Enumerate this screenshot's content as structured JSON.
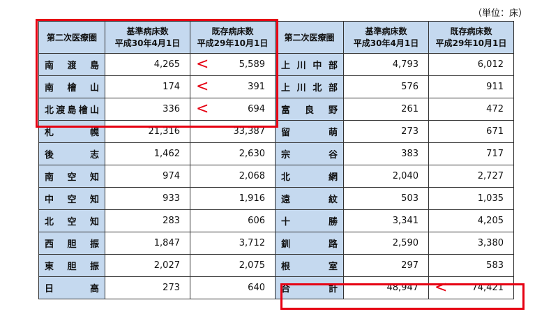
{
  "unit_label": "（単位：床）",
  "header": {
    "area": "第二次医療圏",
    "standard_line1": "基準病床数",
    "standard_line2": "平成30年4月1日",
    "existing_line1": "既存病床数",
    "existing_line2": "平成29年10月1日"
  },
  "mark": "<",
  "rows": [
    {
      "left": {
        "name": "南渡島",
        "standard": "4,265",
        "existing": "5,589",
        "mark": true
      },
      "right": {
        "name": "上川中部",
        "standard": "4,793",
        "existing": "6,012",
        "mark": false
      }
    },
    {
      "left": {
        "name": "南檜山",
        "standard": "174",
        "existing": "391",
        "mark": true
      },
      "right": {
        "name": "上川北部",
        "standard": "576",
        "existing": "911",
        "mark": false
      }
    },
    {
      "left": {
        "name": "北渡島檜山",
        "standard": "336",
        "existing": "694",
        "mark": true
      },
      "right": {
        "name": "富良野",
        "standard": "261",
        "existing": "472",
        "mark": false
      }
    },
    {
      "left": {
        "name": "札幌",
        "standard": "21,316",
        "existing": "33,387",
        "mark": false
      },
      "right": {
        "name": "留萌",
        "standard": "273",
        "existing": "671",
        "mark": false
      }
    },
    {
      "left": {
        "name": "後志",
        "standard": "1,462",
        "existing": "2,630",
        "mark": false
      },
      "right": {
        "name": "宗谷",
        "standard": "383",
        "existing": "717",
        "mark": false
      }
    },
    {
      "left": {
        "name": "南空知",
        "standard": "974",
        "existing": "2,068",
        "mark": false
      },
      "right": {
        "name": "北網",
        "standard": "2,040",
        "existing": "2,727",
        "mark": false
      }
    },
    {
      "left": {
        "name": "中空知",
        "standard": "933",
        "existing": "1,916",
        "mark": false
      },
      "right": {
        "name": "遠紋",
        "standard": "503",
        "existing": "1,035",
        "mark": false
      }
    },
    {
      "left": {
        "name": "北空知",
        "standard": "283",
        "existing": "606",
        "mark": false
      },
      "right": {
        "name": "十勝",
        "standard": "3,341",
        "existing": "4,205",
        "mark": false
      }
    },
    {
      "left": {
        "name": "西胆振",
        "standard": "1,847",
        "existing": "3,712",
        "mark": false
      },
      "right": {
        "name": "釧路",
        "standard": "2,590",
        "existing": "3,380",
        "mark": false
      }
    },
    {
      "left": {
        "name": "東胆振",
        "standard": "2,027",
        "existing": "2,075",
        "mark": false
      },
      "right": {
        "name": "根室",
        "standard": "297",
        "existing": "583",
        "mark": false
      }
    },
    {
      "left": {
        "name": "日高",
        "standard": "273",
        "existing": "640",
        "mark": false
      },
      "right": {
        "name": "合計",
        "standard": "48,947",
        "existing": "74,421",
        "mark": true
      }
    }
  ],
  "colors": {
    "header_bg": "#c5d9ef",
    "highlight": "#e60012"
  }
}
